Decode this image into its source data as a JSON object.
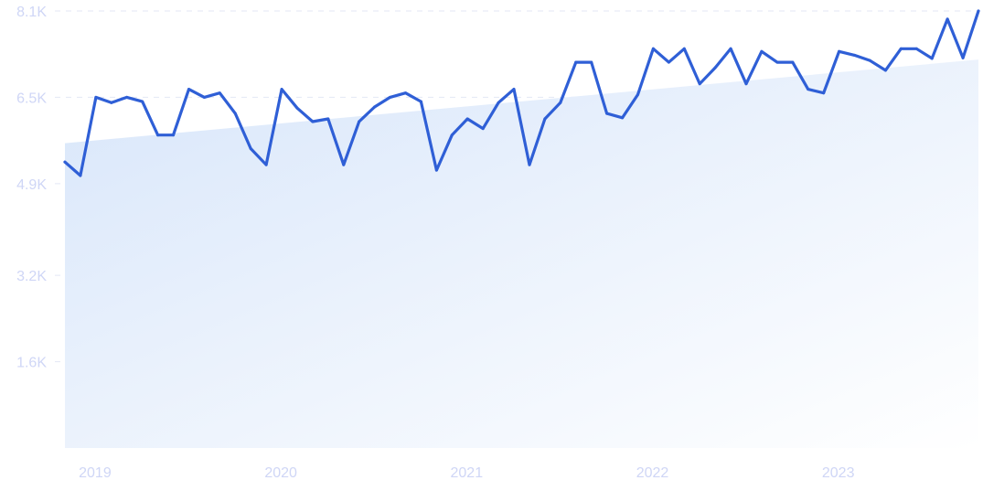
{
  "chart_data": {
    "type": "line",
    "title": "",
    "xlabel": "",
    "ylabel": "",
    "x_tick_labels": [
      "2019",
      "2020",
      "2021",
      "2022",
      "2023"
    ],
    "y_tick_labels": [
      "1.6K",
      "3.2K",
      "4.9K",
      "6.5K",
      "8.1K"
    ],
    "y_ticks": [
      1600,
      3200,
      4900,
      6500,
      8100
    ],
    "ylim": [
      0,
      8100
    ],
    "grid": "horizontal dashed",
    "series": [
      {
        "values": [
          5300,
          5050,
          6500,
          6400,
          6500,
          6420,
          5800,
          5800,
          6650,
          6500,
          6580,
          6200,
          5550,
          5250,
          6650,
          6300,
          6050,
          6100,
          5250,
          6050,
          6320,
          6500,
          6580,
          6420,
          5150,
          5800,
          6100,
          5920,
          6400,
          6650,
          5250,
          6100,
          6400,
          7150,
          7150,
          6200,
          6120,
          6550,
          7400,
          7150,
          7400,
          6750,
          7050,
          7400,
          6750,
          7350,
          7150,
          7150,
          6650,
          6580,
          7350,
          7280,
          7180,
          7000,
          7400,
          7400,
          7220,
          7950,
          7230,
          8100
        ],
        "color": "#2f5fd6"
      }
    ],
    "trend": {
      "start": 5650,
      "end": 7200,
      "color": "#dbe8fb"
    }
  }
}
